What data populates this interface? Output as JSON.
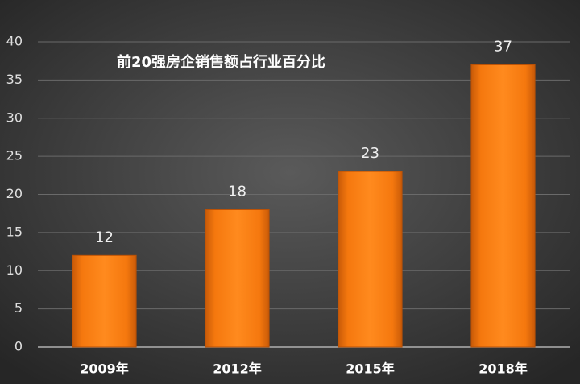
{
  "chart_data": {
    "type": "bar",
    "title": "前20强房企销售额占行业百分比",
    "categories": [
      "2009年",
      "2012年",
      "2015年",
      "2018年"
    ],
    "values": [
      12,
      18,
      23,
      37
    ],
    "color": "#f07a12",
    "ylim": [
      0,
      40
    ],
    "yticks": [
      0,
      5,
      10,
      15,
      20,
      25,
      30,
      35,
      40
    ],
    "grid": true
  }
}
